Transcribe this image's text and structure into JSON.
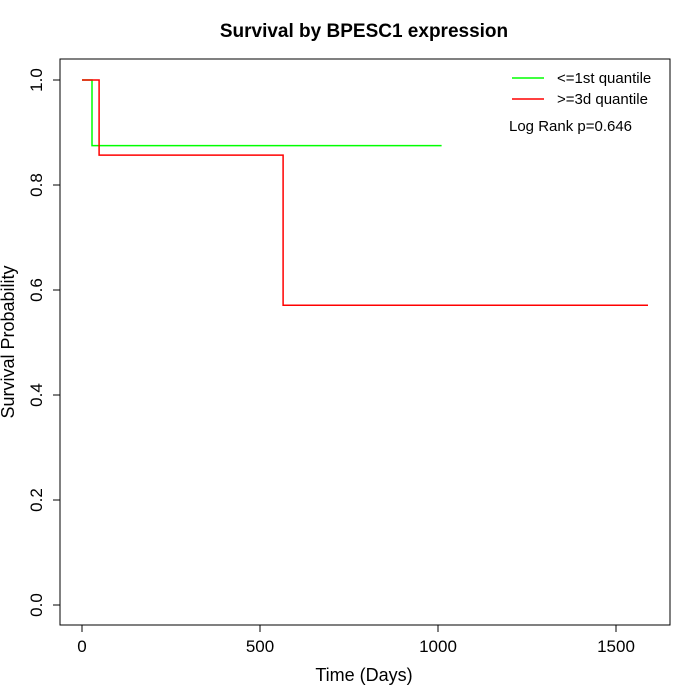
{
  "chart_data": {
    "type": "line",
    "step": true,
    "title": "Survival by BPESC1 expression",
    "xlabel": "Time (Days)",
    "ylabel": "Survival Probability",
    "xlim": [
      0,
      1650
    ],
    "ylim": [
      0,
      1
    ],
    "xticks": [
      0,
      500,
      1000,
      1500
    ],
    "xtick_labels": [
      "0",
      "500",
      "1000",
      "1500"
    ],
    "yticks": [
      0,
      0.2,
      0.4,
      0.6,
      0.8,
      1
    ],
    "ytick_labels": [
      "0.0",
      "0.2",
      "0.4",
      "0.6",
      "0.8",
      "1.0"
    ],
    "grid": false,
    "legend_position": "top-right",
    "annotation": "Log Rank p=0.646",
    "series": [
      {
        "name": "<=1st quantile",
        "color": "#00ff00",
        "x": [
          0,
          28,
          28,
          1010
        ],
        "y": [
          1,
          1,
          0.875,
          0.875
        ]
      },
      {
        "name": ">=3d quantile",
        "color": "#ff0000",
        "x": [
          0,
          48,
          48,
          565,
          565,
          1590
        ],
        "y": [
          1,
          1,
          0.857,
          0.857,
          0.571,
          0.571
        ]
      }
    ]
  }
}
